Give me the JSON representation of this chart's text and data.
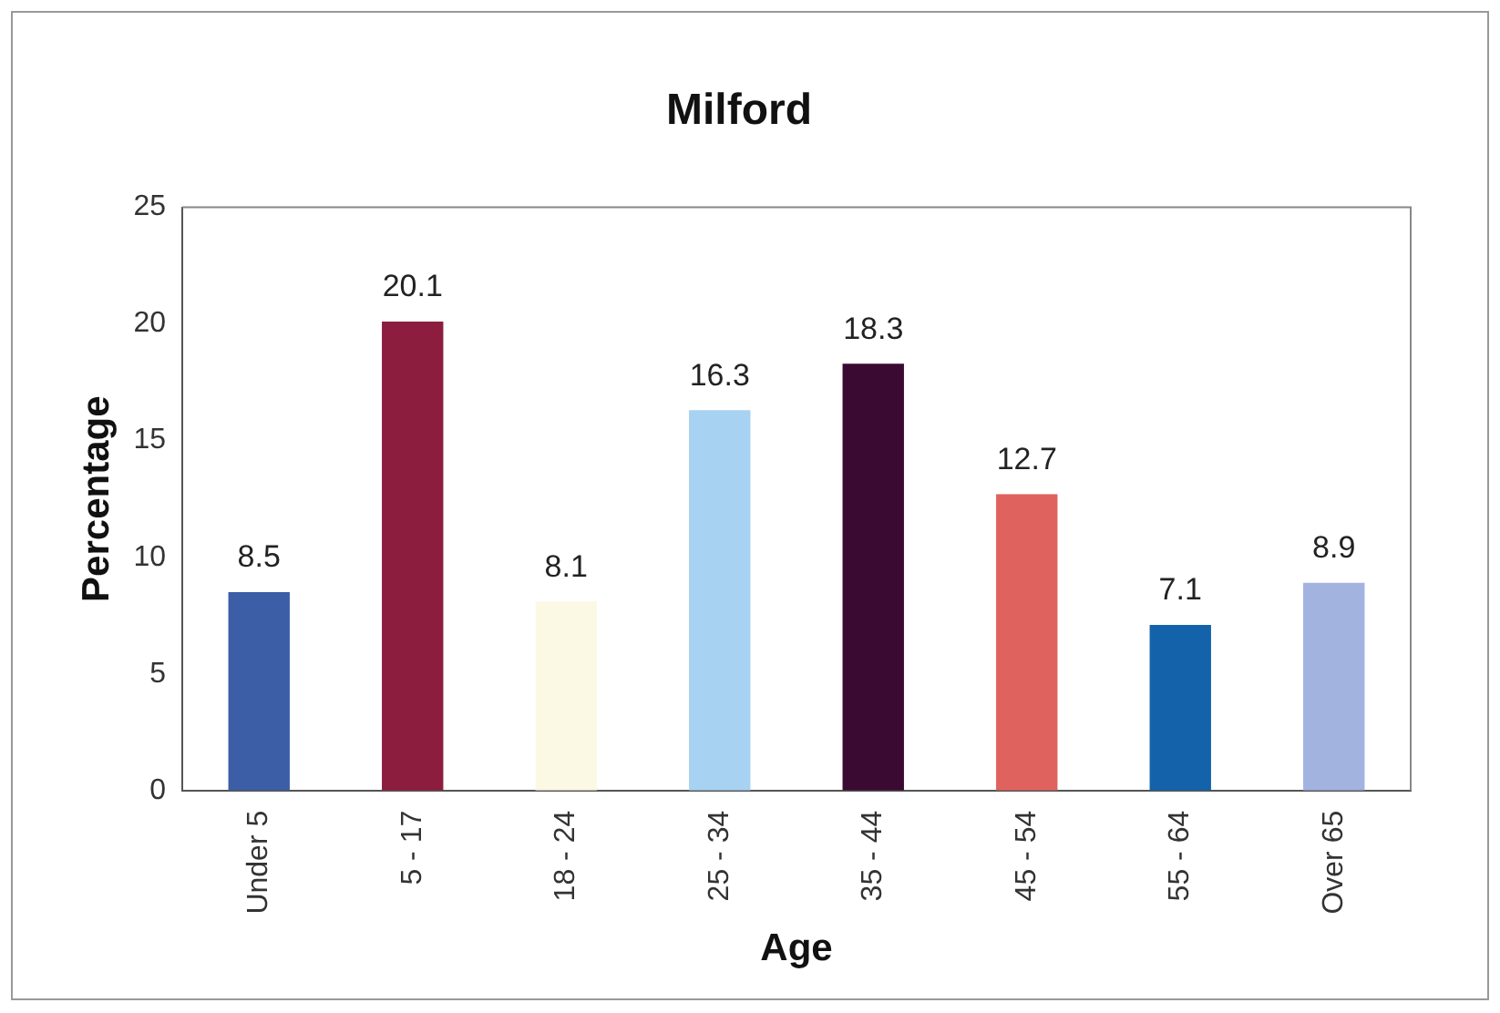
{
  "chart_data": {
    "type": "bar",
    "title": "Milford",
    "xlabel": "Age",
    "ylabel": "Percentage",
    "categories": [
      "Under 5",
      "5 - 17",
      "18 - 24",
      "25 - 34",
      "35 - 44",
      "45 - 54",
      "55 - 64",
      "Over 65"
    ],
    "values": [
      8.5,
      20.1,
      8.1,
      16.3,
      18.3,
      12.7,
      7.1,
      8.9
    ],
    "colors": [
      "#3b5ea6",
      "#8c1d3e",
      "#fbf9e4",
      "#a8d2f2",
      "#3a0a32",
      "#e0625e",
      "#1463aa",
      "#a3b3e0"
    ],
    "ylim": [
      0,
      25
    ],
    "yticks": [
      0,
      5,
      10,
      15,
      20,
      25
    ],
    "grid": false,
    "legend": false,
    "data_labels": true
  }
}
